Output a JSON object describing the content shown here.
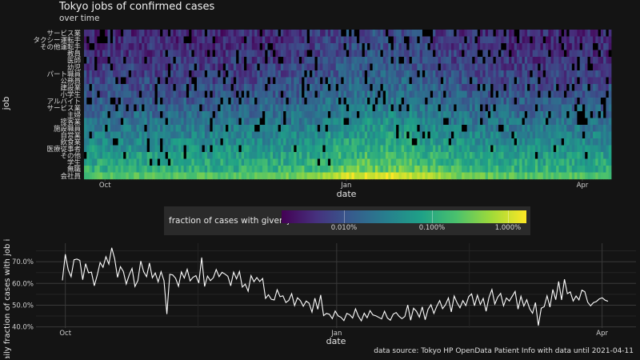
{
  "title": "Tokyo jobs of confirmed cases",
  "subtitle": "over time",
  "caption": "data source: Tokyo HP OpenData Patient Info with data until 2021-04-11",
  "legend": {
    "title": "fraction of cases with given job",
    "ticks": [
      "0.010%",
      "0.100%",
      "1.000%"
    ]
  },
  "colors": {
    "background": "#141414",
    "viridis": [
      "#440154",
      "#46317e",
      "#365c8d",
      "#277f8e",
      "#1fa187",
      "#4ac16d",
      "#a0da39",
      "#fde725"
    ],
    "missing": "#000000",
    "line": "#ffffff"
  },
  "chart_data": [
    {
      "type": "heatmap",
      "title": "Tokyo jobs of confirmed cases",
      "subtitle": "over time",
      "xlabel": "date",
      "ylabel": "job",
      "x_ticks": [
        "Oct",
        "Jan",
        "Apr"
      ],
      "x_range": [
        "2020-09-23",
        "2021-04-11"
      ],
      "y_categories": [
        "サービス業",
        "タクシー運転手",
        "その他運転手",
        "教員",
        "医師",
        "幼児",
        "パート職員",
        "公務員",
        "建設業",
        "小学生",
        "アルバイト",
        "サービス業",
        "主婦",
        "接客業",
        "施設職員",
        "自営業",
        "飲食業",
        "医療従事者",
        "その他",
        "学生",
        "無職",
        "会社員"
      ],
      "color_scale": "viridis",
      "color_scale_type": "log10",
      "legend_ticks": [
        "0.010%",
        "0.100%",
        "1.000%"
      ]
    },
    {
      "type": "line",
      "xlabel": "date",
      "ylabel": "daily fraction of cases with job info",
      "x_ticks": [
        "Oct",
        "Jan",
        "Apr"
      ],
      "y_ticks": [
        "40.0%",
        "50.0%",
        "60.0%",
        "70.0%"
      ],
      "ylim": [
        0.395,
        0.785
      ],
      "series": [
        {
          "x_start": "2020-09-30",
          "x_end": "2021-04-03",
          "values": [
            0.614,
            0.734,
            0.663,
            0.631,
            0.709,
            0.712,
            0.706,
            0.617,
            0.691,
            0.649,
            0.652,
            0.589,
            0.638,
            0.696,
            0.674,
            0.723,
            0.689,
            0.764,
            0.714,
            0.628,
            0.677,
            0.655,
            0.597,
            0.638,
            0.669,
            0.586,
            0.613,
            0.703,
            0.654,
            0.631,
            0.694,
            0.626,
            0.648,
            0.607,
            0.654,
            0.613,
            0.459,
            0.642,
            0.639,
            0.624,
            0.587,
            0.653,
            0.625,
            0.665,
            0.612,
            0.628,
            0.636,
            0.602,
            0.719,
            0.586,
            0.634,
            0.613,
            0.626,
            0.664,
            0.631,
            0.651,
            0.643,
            0.633,
            0.589,
            0.652,
            0.621,
            0.655,
            0.583,
            0.597,
            0.564,
            0.636,
            0.608,
            0.627,
            0.609,
            0.623,
            0.531,
            0.548,
            0.527,
            0.524,
            0.571,
            0.539,
            0.543,
            0.512,
            0.522,
            0.553,
            0.498,
            0.534,
            0.521,
            0.495,
            0.519,
            0.509,
            0.468,
            0.532,
            0.481,
            0.547,
            0.452,
            0.462,
            0.458,
            0.438,
            0.473,
            0.451,
            0.444,
            0.429,
            0.462,
            0.456,
            0.441,
            0.483,
            0.449,
            0.428,
            0.463,
            0.442,
            0.475,
            0.455,
            0.451,
            0.444,
            0.437,
            0.472,
            0.441,
            0.431,
            0.459,
            0.466,
            0.449,
            0.438,
            0.448,
            0.501,
            0.431,
            0.486,
            0.472,
            0.445,
            0.492,
            0.433,
            0.481,
            0.502,
            0.462,
            0.495,
            0.521,
            0.484,
            0.502,
            0.533,
            0.469,
            0.542,
            0.511,
            0.488,
            0.521,
            0.498,
            0.539,
            0.552,
            0.497,
            0.546,
            0.503,
            0.531,
            0.472,
            0.536,
            0.572,
            0.505,
            0.537,
            0.554,
            0.497,
            0.533,
            0.519,
            0.541,
            0.563,
            0.482,
            0.541,
            0.496,
            0.525,
            0.484,
            0.463,
            0.512,
            0.406,
            0.486,
            0.493,
            0.543,
            0.491,
            0.572,
            0.525,
            0.609,
            0.524,
            0.619,
            0.553,
            0.561,
            0.519,
            0.542,
            0.524,
            0.569,
            0.562,
            0.514,
            0.497,
            0.512,
            0.517,
            0.529,
            0.534,
            0.523,
            0.518
          ]
        }
      ]
    }
  ]
}
